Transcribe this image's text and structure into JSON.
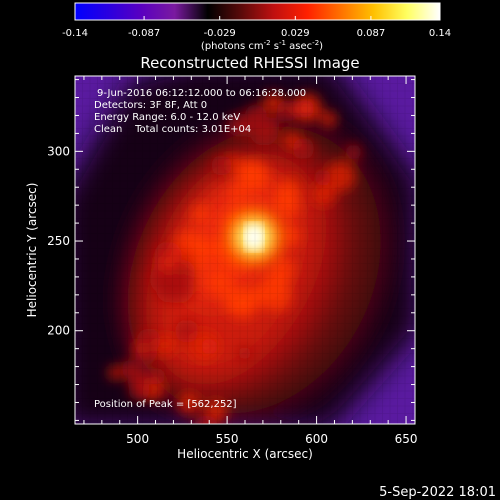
{
  "chart_data": {
    "type": "heatmap",
    "title": "Reconstructed RHESSI Image",
    "xlabel": "Heliocentric X (arcsec)",
    "ylabel": "Heliocentric Y (arcsec)",
    "xlim": [
      465,
      655
    ],
    "ylim": [
      148,
      342
    ],
    "x_ticks": [
      500,
      550,
      600,
      650
    ],
    "y_ticks": [
      200,
      250,
      300
    ],
    "colorbar": {
      "min": -0.14,
      "max": 0.14,
      "tick_values": [
        -0.14,
        -0.087,
        -0.029,
        0.029,
        0.087,
        0.14
      ],
      "tick_labels": [
        "-0.14",
        "-0.087",
        "-0.029",
        "0.029",
        "0.087",
        "0.14"
      ],
      "unit_label": "(photons cm",
      "unit_exp1": "-2",
      "unit_mid": " s",
      "unit_exp2": "-1",
      "unit_mid2": " asec",
      "unit_exp3": "-2",
      "unit_end": ")",
      "colormap": [
        "#0000ff",
        "#2a00e0",
        "#5a00c0",
        "#7a1aa0",
        "#000000",
        "#5a0a0a",
        "#c01010",
        "#ff2000",
        "#ff7000",
        "#ffc000",
        "#ffff60",
        "#ffffff"
      ]
    },
    "annotations": [
      "9-Jun-2016 06:12:12.000 to 06:16:28.000",
      "Detectors: 3F 8F, Att 0",
      "Energy Range: 6.0 - 12.0 keV",
      "Clean    Total counts: 3.01E+04"
    ],
    "peak_label": "Position of Peak = [562,252]",
    "peak": [
      562,
      252
    ]
  },
  "footer": {
    "timestamp": "5-Sep-2022 18:01"
  }
}
